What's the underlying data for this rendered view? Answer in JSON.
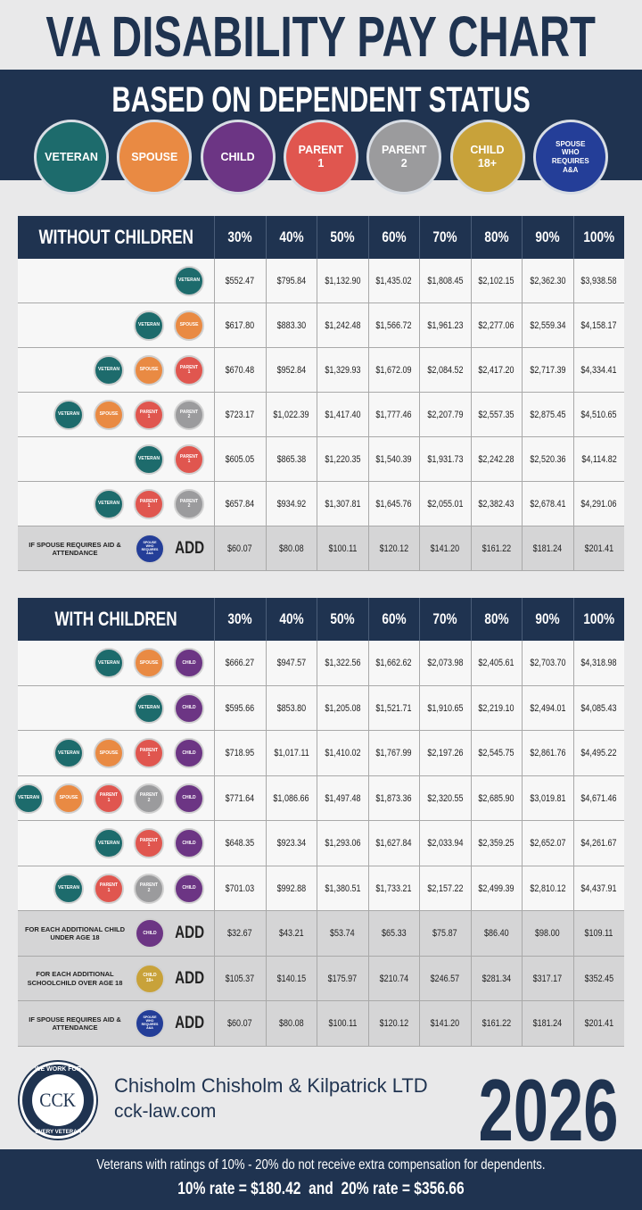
{
  "header": {
    "title": "VA DISABILITY PAY CHART",
    "subtitle": "BASED ON DEPENDENT STATUS"
  },
  "legend": [
    {
      "label": "VETERAN",
      "color": "#1d6b6c"
    },
    {
      "label": "SPOUSE",
      "color": "#e98a43"
    },
    {
      "label": "CHILD",
      "color": "#6c3584"
    },
    {
      "label": "PARENT 1",
      "color": "#e0564f"
    },
    {
      "label": "PARENT 2",
      "color": "#9b9b9d"
    },
    {
      "label": "CHILD 18+",
      "color": "#c8a23a"
    },
    {
      "label": "SPOUSE WHO REQUIRES A&A",
      "color": "#243e98"
    }
  ],
  "tables": [
    {
      "title": "WITHOUT CHILDREN",
      "columns": [
        "30%",
        "40%",
        "50%",
        "60%",
        "70%",
        "80%",
        "90%",
        "100%"
      ],
      "rows": [
        {
          "badges": [
            "VETERAN"
          ],
          "values": [
            "$552.47",
            "$795.84",
            "$1,132.90",
            "$1,435.02",
            "$1,808.45",
            "$2,102.15",
            "$2,362.30",
            "$3,938.58"
          ]
        },
        {
          "badges": [
            "VETERAN",
            "SPOUSE"
          ],
          "values": [
            "$617.80",
            "$883.30",
            "$1,242.48",
            "$1,566.72",
            "$1,961.23",
            "$2,277.06",
            "$2,559.34",
            "$4,158.17"
          ]
        },
        {
          "badges": [
            "VETERAN",
            "SPOUSE",
            "PARENT 1"
          ],
          "values": [
            "$670.48",
            "$952.84",
            "$1,329.93",
            "$1,672.09",
            "$2,084.52",
            "$2,417.20",
            "$2,717.39",
            "$4,334.41"
          ]
        },
        {
          "badges": [
            "VETERAN",
            "SPOUSE",
            "PARENT 1",
            "PARENT 2"
          ],
          "values": [
            "$723.17",
            "$1,022.39",
            "$1,417.40",
            "$1,777.46",
            "$2,207.79",
            "$2,557.35",
            "$2,875.45",
            "$4,510.65"
          ]
        },
        {
          "badges": [
            "VETERAN",
            "PARENT 1"
          ],
          "values": [
            "$605.05",
            "$865.38",
            "$1,220.35",
            "$1,540.39",
            "$1,931.73",
            "$2,242.28",
            "$2,520.36",
            "$4,114.82"
          ]
        },
        {
          "badges": [
            "VETERAN",
            "PARENT 1",
            "PARENT 2"
          ],
          "values": [
            "$657.84",
            "$934.92",
            "$1,307.81",
            "$1,645.76",
            "$2,055.01",
            "$2,382.43",
            "$2,678.41",
            "$4,291.06"
          ]
        },
        {
          "note": "IF SPOUSE REQUIRES AID & ATTENDANCE",
          "badges": [
            "SPOUSE WHO REQUIRES A&A"
          ],
          "add": "ADD",
          "values": [
            "$60.07",
            "$80.08",
            "$100.11",
            "$120.12",
            "$141.20",
            "$161.22",
            "$181.24",
            "$201.41"
          ]
        }
      ]
    },
    {
      "title": "WITH CHILDREN",
      "columns": [
        "30%",
        "40%",
        "50%",
        "60%",
        "70%",
        "80%",
        "90%",
        "100%"
      ],
      "rows": [
        {
          "badges": [
            "VETERAN",
            "SPOUSE",
            "CHILD"
          ],
          "values": [
            "$666.27",
            "$947.57",
            "$1,322.56",
            "$1,662.62",
            "$2,073.98",
            "$2,405.61",
            "$2,703.70",
            "$4,318.98"
          ]
        },
        {
          "badges": [
            "VETERAN",
            "CHILD"
          ],
          "values": [
            "$595.66",
            "$853.80",
            "$1,205.08",
            "$1,521.71",
            "$1,910.65",
            "$2,219.10",
            "$2,494.01",
            "$4,085.43"
          ]
        },
        {
          "badges": [
            "VETERAN",
            "SPOUSE",
            "PARENT 1",
            "CHILD"
          ],
          "values": [
            "$718.95",
            "$1,017.11",
            "$1,410.02",
            "$1,767.99",
            "$2,197.26",
            "$2,545.75",
            "$2,861.76",
            "$4,495.22"
          ]
        },
        {
          "badges": [
            "VETERAN",
            "SPOUSE",
            "PARENT 1",
            "PARENT 2",
            "CHILD"
          ],
          "values": [
            "$771.64",
            "$1,086.66",
            "$1,497.48",
            "$1,873.36",
            "$2,320.55",
            "$2,685.90",
            "$3,019.81",
            "$4,671.46"
          ]
        },
        {
          "badges": [
            "VETERAN",
            "PARENT 1",
            "CHILD"
          ],
          "values": [
            "$648.35",
            "$923.34",
            "$1,293.06",
            "$1,627.84",
            "$2,033.94",
            "$2,359.25",
            "$2,652.07",
            "$4,261.67"
          ]
        },
        {
          "badges": [
            "VETERAN",
            "PARENT 1",
            "PARENT 2",
            "CHILD"
          ],
          "values": [
            "$701.03",
            "$992.88",
            "$1,380.51",
            "$1,733.21",
            "$2,157.22",
            "$2,499.39",
            "$2,810.12",
            "$4,437.91"
          ]
        },
        {
          "note": "FOR EACH ADDITIONAL CHILD UNDER AGE 18",
          "badges": [
            "CHILD"
          ],
          "add": "ADD",
          "values": [
            "$32.67",
            "$43.21",
            "$53.74",
            "$65.33",
            "$75.87",
            "$86.40",
            "$98.00",
            "$109.11"
          ]
        },
        {
          "note": "FOR EACH ADDITIONAL SCHOOLCHILD OVER AGE 18",
          "badges": [
            "CHILD 18+"
          ],
          "add": "ADD",
          "values": [
            "$105.37",
            "$140.15",
            "$175.97",
            "$210.74",
            "$246.57",
            "$281.34",
            "$317.17",
            "$352.45"
          ]
        },
        {
          "note": "IF SPOUSE REQUIRES AID & ATTENDANCE",
          "badges": [
            "SPOUSE WHO REQUIRES A&A"
          ],
          "add": "ADD",
          "values": [
            "$60.07",
            "$80.08",
            "$100.11",
            "$120.12",
            "$141.20",
            "$161.22",
            "$181.24",
            "$201.41"
          ]
        }
      ]
    }
  ],
  "footer": {
    "logo": {
      "top": "WE WORK FOR",
      "center": "CCK",
      "bottom": "EVERY VETERAN"
    },
    "firm": "Chisholm Chisholm & Kilpatrick LTD",
    "website": "cck-law.com",
    "year": "2026",
    "note": "Veterans with ratings of 10% - 20% do not receive extra compensation for dependents.",
    "rates": "10% rate = $180.42  and  20% rate = $356.66"
  }
}
